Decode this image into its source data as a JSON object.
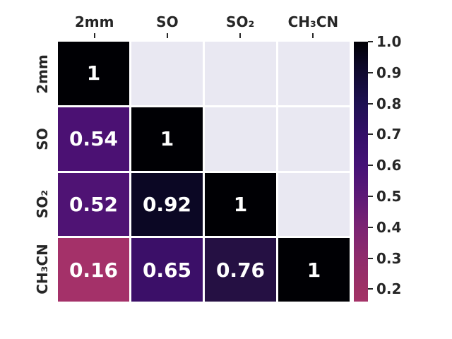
{
  "chart_data": {
    "type": "heatmap",
    "title": "",
    "xlabel": "",
    "ylabel": "",
    "categories": [
      "2mm",
      "SO",
      "SO₂",
      "CH₃CN"
    ],
    "matrix": [
      [
        1,
        null,
        null,
        null
      ],
      [
        0.54,
        1,
        null,
        null
      ],
      [
        0.52,
        0.92,
        1,
        null
      ],
      [
        0.16,
        0.65,
        0.76,
        1
      ]
    ],
    "cell_labels": [
      [
        "1",
        "",
        "",
        ""
      ],
      [
        "0.54",
        "1",
        "",
        ""
      ],
      [
        "0.52",
        "0.92",
        "1",
        ""
      ],
      [
        "0.16",
        "0.65",
        "0.76",
        "1"
      ]
    ],
    "cell_colors": [
      [
        "#000004",
        "",
        "",
        ""
      ],
      [
        "#4b1173",
        "#000004",
        "",
        ""
      ],
      [
        "#4f1374",
        "#0b0724",
        "#000004",
        ""
      ],
      [
        "#a43169",
        "#3b0f68",
        "#251043",
        "#000004"
      ]
    ],
    "masked_cell_color": "#e9e8f2",
    "gridline_color": "#ffffff",
    "annotation_text_color": "#ffffff",
    "label_color": "#262626",
    "grid": false,
    "legend_position": "right",
    "colorbar": {
      "vmin": 0.16,
      "vmax": 1.0,
      "ticks": [
        "1.0",
        "0.9",
        "0.8",
        "0.7",
        "0.6",
        "0.5",
        "0.4",
        "0.3",
        "0.2"
      ],
      "gradient": [
        {
          "pos": 0,
          "color": "#000004"
        },
        {
          "pos": 9.5,
          "color": "#0d0829"
        },
        {
          "pos": 23.8,
          "color": "#1e1152"
        },
        {
          "pos": 35.7,
          "color": "#331068"
        },
        {
          "pos": 47.6,
          "color": "#451277"
        },
        {
          "pos": 59.5,
          "color": "#5d1a77"
        },
        {
          "pos": 71.4,
          "color": "#7b2373"
        },
        {
          "pos": 83.3,
          "color": "#8f2b6c"
        },
        {
          "pos": 95.2,
          "color": "#9e3165"
        },
        {
          "pos": 100,
          "color": "#a43368"
        }
      ]
    }
  }
}
